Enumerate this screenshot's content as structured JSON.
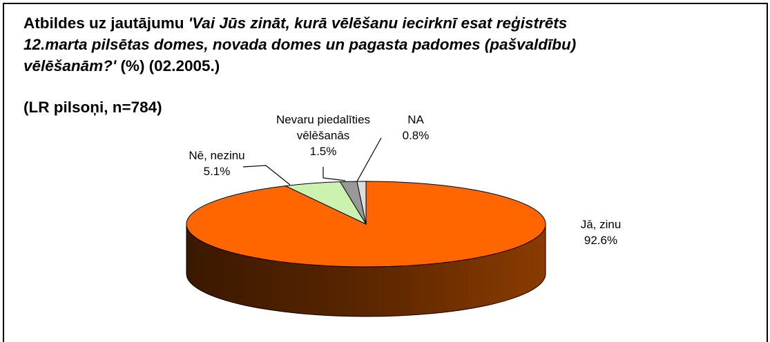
{
  "chart_data": {
    "type": "pie",
    "title": [
      "Atbildes uz jautājumu ",
      "'Vai Jūs zināt, kurā vēlēšanu iecirknī esat reģistrēts 12.marta pilsētas domes, novada domes un pagasta padomes (pašvaldību) vēlēšanām?'",
      " (%) (02.2005.)"
    ],
    "subtitle": "(LR pilsoņi, n=784)",
    "categories": [
      "Jā, zinu",
      "Nē, nezinu",
      "Nevaru piedalīties vēlēšanās",
      "NA"
    ],
    "values": [
      92.6,
      5.1,
      1.5,
      0.8
    ],
    "value_labels": [
      "92.6%",
      "5.1%",
      "1.5%",
      "0.8%"
    ],
    "colors": [
      "#ff6600",
      "#ccf2b0",
      "#999999",
      "#dddddd"
    ]
  }
}
